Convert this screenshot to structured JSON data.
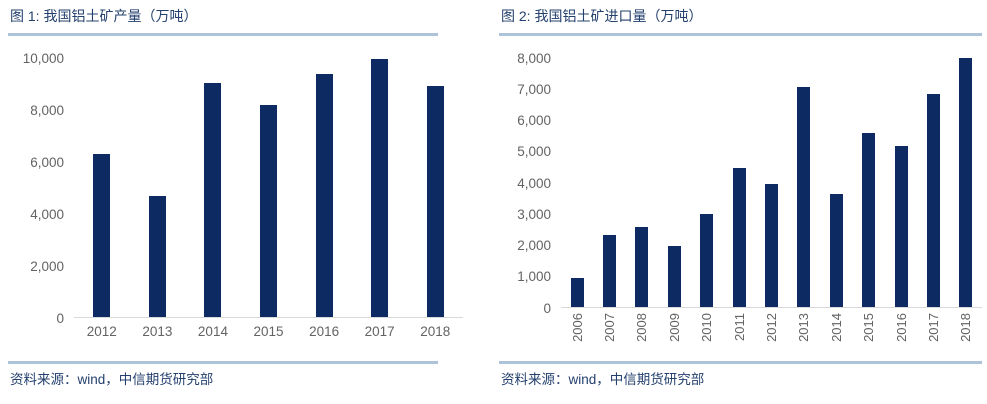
{
  "colors": {
    "bar": "#0d2a63",
    "navy_text": "#24406e",
    "axis_label_gray": "#636363",
    "light_blue_rule": "#adc3da",
    "axis_line": "#d9d9d9",
    "background": "#ffffff"
  },
  "panels": [
    {
      "title": "图 1: 我国铝土矿产量（万吨）",
      "source": "资料来源：wind，中信期货研究部"
    },
    {
      "title": "图 2: 我国铝土矿进口量（万吨）",
      "source": "资料来源：wind，中信期货研究部"
    }
  ],
  "chart_data": [
    {
      "type": "bar",
      "title": "图 1: 我国铝土矿产量（万吨）",
      "categories": [
        "2012",
        "2013",
        "2014",
        "2015",
        "2016",
        "2017",
        "2018"
      ],
      "values": [
        6300,
        4690,
        9030,
        8200,
        9380,
        9950,
        8920
      ],
      "xlabel": "",
      "ylabel": "",
      "ylim": [
        0,
        10000
      ],
      "ytick_step": 2000,
      "grid": false,
      "legend": "none",
      "bar_color": "#0d2a63",
      "xtick_rotation": 0
    },
    {
      "type": "bar",
      "title": "图 2: 我国铝土矿进口量（万吨）",
      "categories": [
        "2006",
        "2007",
        "2008",
        "2009",
        "2010",
        "2011",
        "2012",
        "2013",
        "2014",
        "2015",
        "2016",
        "2017",
        "2018"
      ],
      "values": [
        930,
        2300,
        2570,
        1960,
        3000,
        4470,
        3940,
        7060,
        3620,
        5580,
        5180,
        6840,
        7990
      ],
      "xlabel": "",
      "ylabel": "",
      "ylim": [
        0,
        8000
      ],
      "ytick_step": 1000,
      "grid": false,
      "legend": "none",
      "bar_color": "#0d2a63",
      "xtick_rotation": -90
    }
  ]
}
